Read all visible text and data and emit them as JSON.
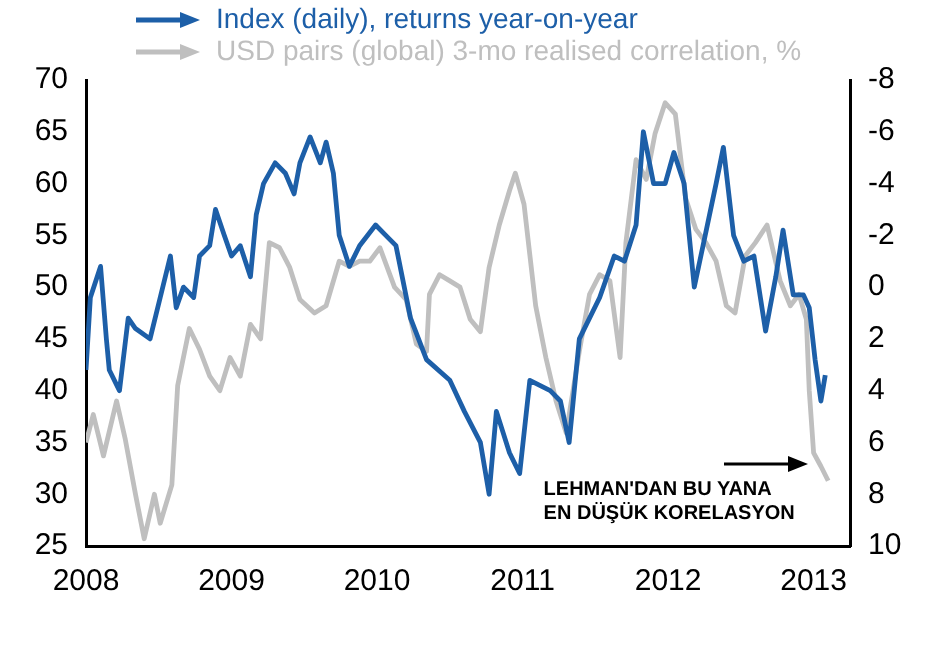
{
  "chart_data": {
    "type": "line",
    "xlim": [
      2008,
      2013.25
    ],
    "xticks": [
      2008,
      2009,
      2010,
      2011,
      2012,
      2013
    ],
    "ylim": [
      25,
      70
    ],
    "yticks": [
      25,
      30,
      35,
      40,
      45,
      50,
      55,
      60,
      65,
      70
    ],
    "y2lim": [
      10,
      -8
    ],
    "y2ticks": [
      -8,
      -6,
      -4,
      -2,
      0,
      2,
      4,
      6,
      8,
      10
    ],
    "grid": false,
    "legend": "top left",
    "marker": "none",
    "line_style": "solid",
    "series": [
      {
        "name": "Index (daily), returns year-on-year",
        "color": "#1d5fa8",
        "axis": "y2",
        "x": [
          2008.0,
          2008.03,
          2008.1,
          2008.14,
          2008.16,
          2008.23,
          2008.29,
          2008.34,
          2008.44,
          2008.51,
          2008.58,
          2008.62,
          2008.67,
          2008.74,
          2008.78,
          2008.85,
          2008.89,
          2008.95,
          2009.0,
          2009.06,
          2009.13,
          2009.17,
          2009.22,
          2009.3,
          2009.37,
          2009.43,
          2009.47,
          2009.54,
          2009.61,
          2009.65,
          2009.7,
          2009.74,
          2009.81,
          2009.88,
          2009.99,
          2010.06,
          2010.13,
          2010.23,
          2010.34,
          2010.5,
          2010.6,
          2010.71,
          2010.77,
          2010.82,
          2010.91,
          2010.98,
          2011.05,
          2011.19,
          2011.26,
          2011.32,
          2011.39,
          2011.53,
          2011.63,
          2011.7,
          2011.78,
          2011.83,
          2011.9,
          2011.98,
          2012.04,
          2012.11,
          2012.18,
          2012.24,
          2012.33,
          2012.38,
          2012.45,
          2012.52,
          2012.59,
          2012.67,
          2012.74,
          2012.79,
          2012.86,
          2012.93,
          2012.97,
          2013.01,
          2013.05,
          2013.08
        ],
        "values": [
          3.2,
          0.4,
          -0.8,
          2.0,
          3.2,
          4.0,
          1.2,
          1.6,
          2.0,
          0.4,
          -1.2,
          0.8,
          0.0,
          0.4,
          -1.2,
          -1.6,
          -3.0,
          -2.0,
          -1.2,
          -1.6,
          -0.4,
          -2.8,
          -4.0,
          -4.8,
          -4.4,
          -3.6,
          -4.8,
          -5.8,
          -4.8,
          -5.6,
          -4.4,
          -2.0,
          -0.8,
          -1.6,
          -2.4,
          -2.0,
          -1.6,
          1.2,
          2.8,
          3.6,
          4.8,
          6.0,
          8.0,
          4.8,
          6.4,
          7.2,
          3.6,
          4.0,
          4.4,
          6.0,
          2.0,
          0.4,
          -1.2,
          -1.0,
          -2.4,
          -6.0,
          -4.0,
          -4.0,
          -5.2,
          -4.0,
          0.0,
          -1.6,
          -4.0,
          -5.4,
          -2.0,
          -1.0,
          -1.2,
          1.7,
          -0.4,
          -2.2,
          0.3,
          0.3,
          0.8,
          2.8,
          4.4,
          3.4
        ]
      },
      {
        "name": "USD pairs (global) 3-mo realised correlation, %",
        "color": "#bfbfbf",
        "x": [
          2008.0,
          2008.05,
          2008.12,
          2008.21,
          2008.27,
          2008.34,
          2008.4,
          2008.47,
          2008.51,
          2008.59,
          2008.63,
          2008.71,
          2008.78,
          2008.85,
          2008.92,
          2008.99,
          2009.06,
          2009.13,
          2009.2,
          2009.26,
          2009.33,
          2009.4,
          2009.47,
          2009.57,
          2009.65,
          2009.74,
          2009.81,
          2009.88,
          2009.95,
          2010.02,
          2010.12,
          2010.2,
          2010.27,
          2010.34,
          2010.36,
          2010.43,
          2010.5,
          2010.57,
          2010.64,
          2010.71,
          2010.77,
          2010.84,
          2010.91,
          2010.95,
          2011.01,
          2011.09,
          2011.16,
          2011.23,
          2011.3,
          2011.39,
          2011.46,
          2011.53,
          2011.6,
          2011.67,
          2011.71,
          2011.78,
          2011.85,
          2011.91,
          2011.98,
          2012.05,
          2012.12,
          2012.19,
          2012.26,
          2012.33,
          2012.4,
          2012.46,
          2012.53,
          2012.6,
          2012.68,
          2012.77,
          2012.84,
          2012.9,
          2012.95,
          2012.97,
          2013.0,
          2013.05,
          2013.1
        ],
        "values": [
          35,
          37.7,
          33.7,
          39,
          35.3,
          30,
          25.7,
          30,
          27.2,
          30.9,
          40.5,
          46,
          44,
          41.4,
          40,
          43.2,
          41.4,
          46.4,
          45,
          54.3,
          53.8,
          51.9,
          48.8,
          47.5,
          48.2,
          52.5,
          52,
          52.5,
          52.5,
          53.8,
          50,
          48.8,
          44.5,
          43.8,
          49.3,
          51.2,
          50.6,
          50,
          46.9,
          45.7,
          51.9,
          56,
          59.3,
          61,
          58,
          48.2,
          43.2,
          39,
          35.9,
          43.8,
          49.3,
          51.2,
          50.6,
          43.2,
          54.3,
          62.3,
          60.4,
          64.8,
          67.8,
          66.7,
          58.6,
          55.6,
          54.3,
          52.5,
          48.2,
          47.5,
          53,
          54.3,
          56,
          50.6,
          48.2,
          49.3,
          46.9,
          40,
          34,
          32.7,
          31.3
        ]
      }
    ],
    "annotations": [
      {
        "text": "LEHMAN'DAN BU YANA\nEN DÜŞÜK KORELASYON",
        "x": 2013.0,
        "y": 33
      }
    ]
  }
}
